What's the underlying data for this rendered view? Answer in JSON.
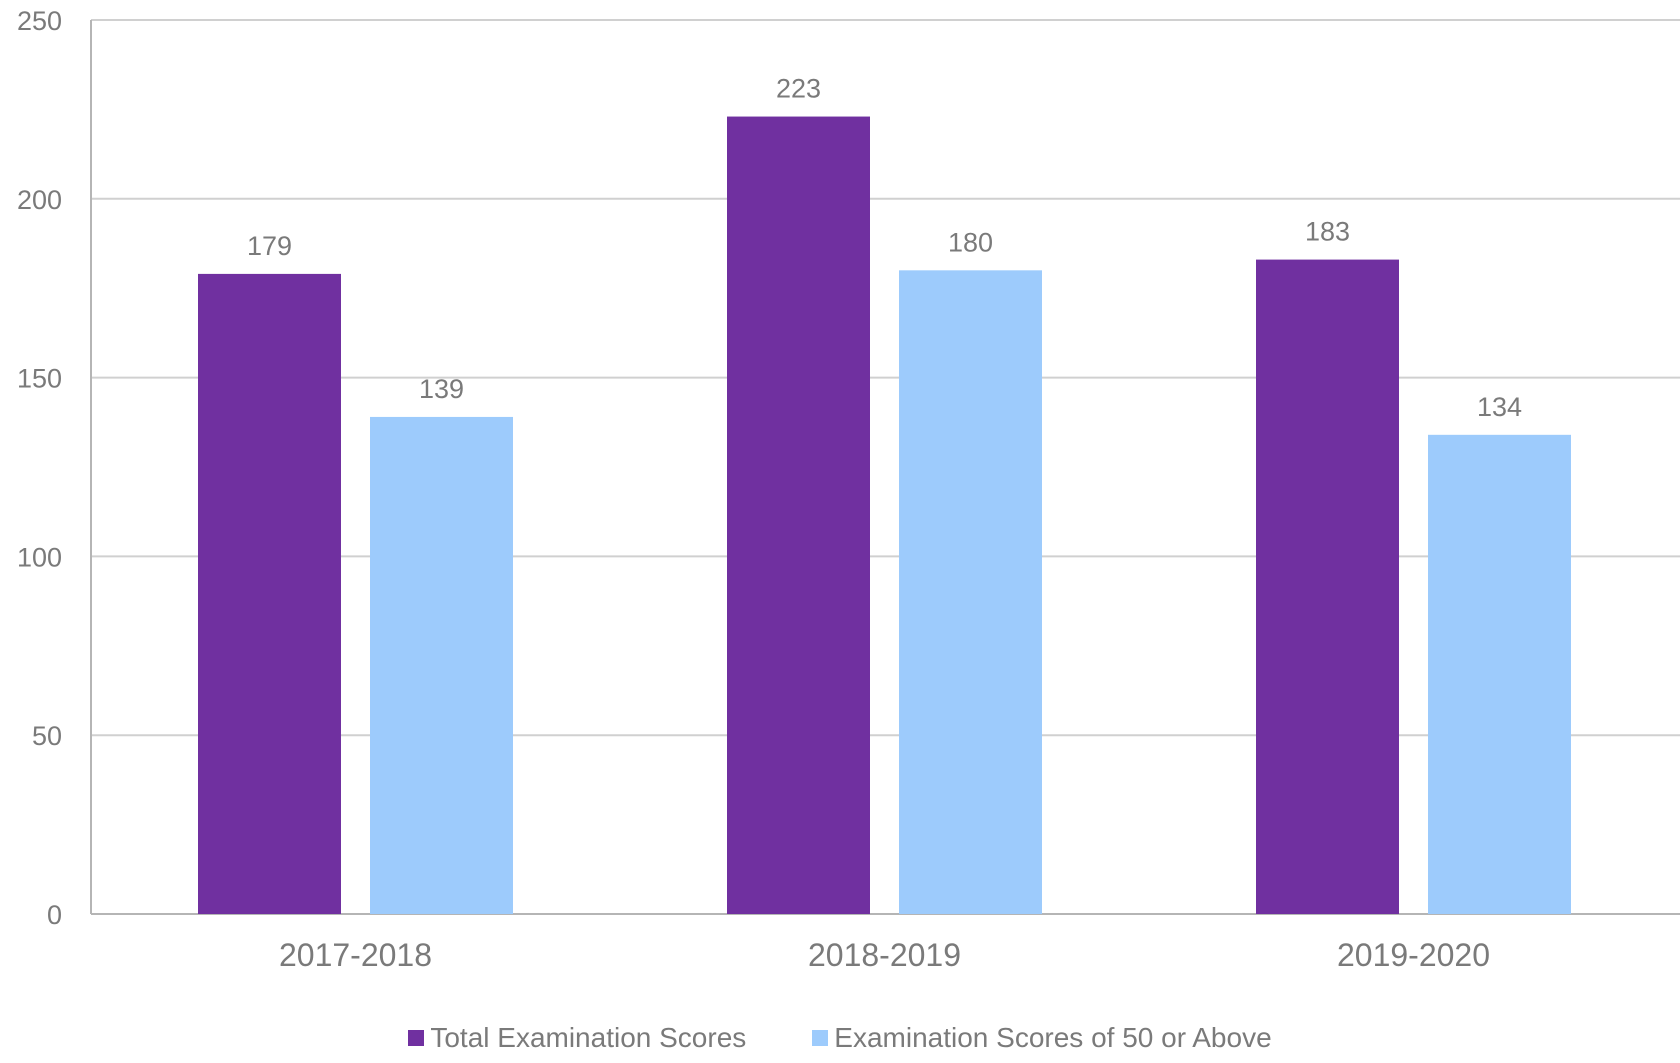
{
  "colors": {
    "series1": "#7030a0",
    "series2": "#9dcbfc",
    "grid": "#d0d0d0",
    "axis": "#b5b5b5",
    "text": "#7a7a7a"
  },
  "chart_data": {
    "type": "bar",
    "categories": [
      "2017-2018",
      "2018-2019",
      "2019-2020"
    ],
    "series": [
      {
        "name": "Total Examination Scores",
        "values": [
          179,
          223,
          183
        ]
      },
      {
        "name": "Examination Scores of 50 or Above",
        "values": [
          139,
          180,
          134
        ]
      }
    ],
    "yticks": [
      "0",
      "50",
      "100",
      "150",
      "200",
      "250"
    ],
    "ylim": [
      0,
      250
    ],
    "grid": true,
    "legend": "bottom",
    "title": "",
    "xlabel": "",
    "ylabel": ""
  },
  "legend": {
    "items": [
      {
        "label": "Total Examination Scores"
      },
      {
        "label": "Examination Scores of 50 or Above"
      }
    ]
  }
}
